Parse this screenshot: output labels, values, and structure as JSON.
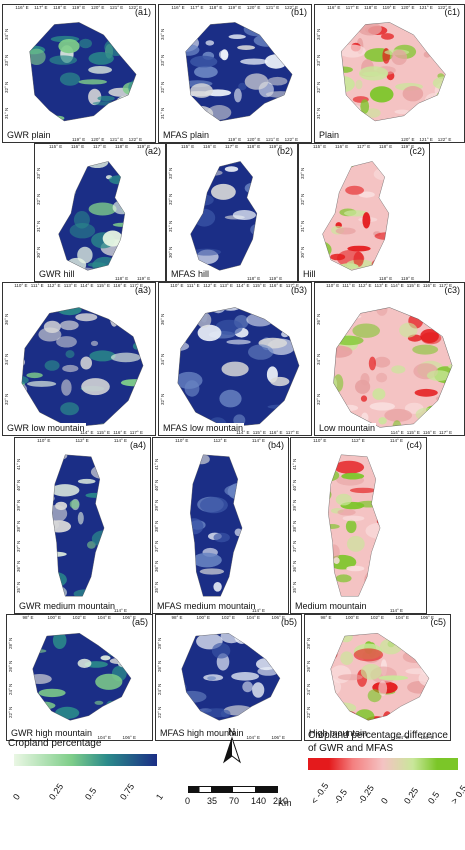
{
  "colors": {
    "cropland_low": "#eaf7e4",
    "cropland_mid": "#7fce8a",
    "cropland_high": "#1b2e86",
    "diff_neg": "#e41a1c",
    "diff_zero": "#f4c3c3",
    "diff_pos": "#7bc628",
    "nodata": "#d9d9d9"
  },
  "rows": [
    {
      "lon_ticks": [
        "116° E",
        "117° E",
        "118° E",
        "119° E",
        "120° E",
        "121° E",
        "122° E"
      ],
      "lat_ticks": [
        "34° N",
        "33° N",
        "32° N",
        "31° N"
      ],
      "panels": [
        {
          "label": "(a1)",
          "name": "GWR plain",
          "type": "gwr"
        },
        {
          "label": "(b1)",
          "name": "MFAS plain",
          "type": "mfas"
        },
        {
          "label": "(c1)",
          "name": "Plain",
          "type": "diff"
        }
      ]
    },
    {
      "lon_ticks": [
        "115° E",
        "116° E",
        "117° E",
        "118° E",
        "119° E"
      ],
      "lat_ticks": [
        "33° N",
        "32° N",
        "31° N",
        "30° N"
      ],
      "panels": [
        {
          "label": "(a2)",
          "name": "GWR hill",
          "type": "gwr"
        },
        {
          "label": "(b2)",
          "name": "MFAS hill",
          "type": "mfas"
        },
        {
          "label": "(c2)",
          "name": "Hill",
          "type": "diff"
        }
      ]
    },
    {
      "lon_ticks": [
        "110° E",
        "111° E",
        "112° E",
        "113° E",
        "114° E",
        "115° E",
        "116° E",
        "117° E"
      ],
      "lat_ticks": [
        "36° N",
        "34° N",
        "32° N"
      ],
      "panels": [
        {
          "label": "(a3)",
          "name": "GWR low mountain",
          "type": "gwr"
        },
        {
          "label": "(b3)",
          "name": "MFAS low mountain",
          "type": "mfas"
        },
        {
          "label": "(c3)",
          "name": "Low mountain",
          "type": "diff"
        }
      ]
    },
    {
      "lon_ticks": [
        "110° E",
        "112° E",
        "114° E"
      ],
      "lat_ticks": [
        "41° N",
        "40° N",
        "39° N",
        "38° N",
        "37° N",
        "36° N",
        "35° N"
      ],
      "panels": [
        {
          "label": "(a4)",
          "name": "GWR medium mountain",
          "type": "gwr"
        },
        {
          "label": "(b4)",
          "name": "MFAS medium mountain",
          "type": "mfas"
        },
        {
          "label": "(c4)",
          "name": "Medium mountain",
          "type": "diff"
        }
      ]
    },
    {
      "lon_ticks": [
        "98° E",
        "100° E",
        "102° E",
        "104° E",
        "106° E"
      ],
      "lat_ticks": [
        "28° N",
        "26° N",
        "24° N",
        "22° N"
      ],
      "panels": [
        {
          "label": "(a5)",
          "name": "GWR high mountain",
          "type": "gwr"
        },
        {
          "label": "(b5)",
          "name": "MFAS high mountain",
          "type": "mfas"
        },
        {
          "label": "(c5)",
          "name": "High mountain",
          "type": "diff"
        }
      ]
    }
  ],
  "legend_left": {
    "title": "Cropland percentage",
    "ticks": [
      "0",
      "0.25",
      "0.5",
      "0.75",
      "1"
    ]
  },
  "scale": {
    "north": "N",
    "ticks": [
      "0",
      "35",
      "70",
      "140",
      "210"
    ],
    "unit": "Km"
  },
  "legend_right": {
    "title_line1": "Cropland percentage difference",
    "title_line2": "of GWR and MFAS",
    "ticks": [
      "< -0.5",
      "-0.5",
      "-0.25",
      "0",
      "0.25",
      "0.5",
      "> 0.5"
    ]
  }
}
